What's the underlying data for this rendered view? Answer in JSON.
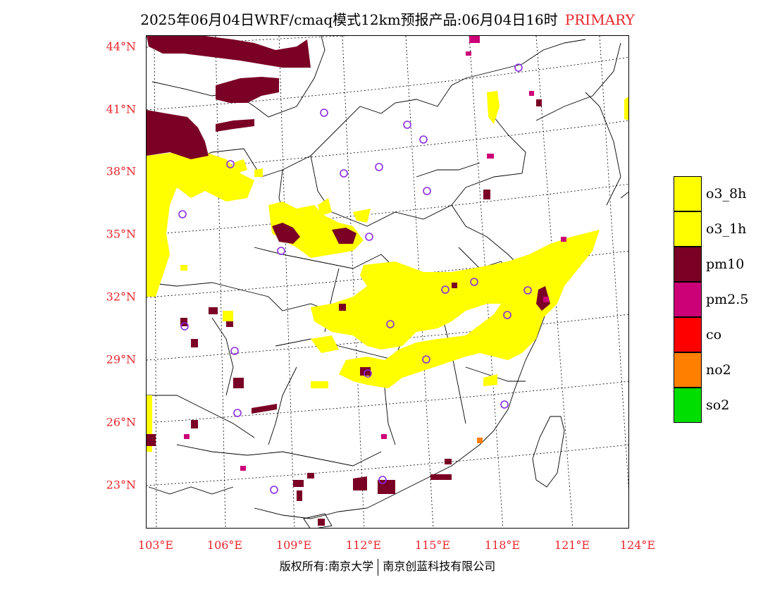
{
  "title": {
    "main": "2025年06月04日WRF/cmaq模式12km预报产品:06月04日16时",
    "tag": "PRIMARY"
  },
  "axes": {
    "lat_labels": [
      "44°N",
      "41°N",
      "38°N",
      "35°N",
      "32°N",
      "29°N",
      "26°N",
      "23°N"
    ],
    "lon_labels": [
      "103°E",
      "106°E",
      "109°E",
      "112°E",
      "115°E",
      "118°E",
      "121°E",
      "124°E"
    ]
  },
  "legend": [
    {
      "label": "o3_8h",
      "color": "#ffff00"
    },
    {
      "label": "o3_1h",
      "color": "#ffff00"
    },
    {
      "label": "pm10",
      "color": "#7a0025"
    },
    {
      "label": "pm2.5",
      "color": "#cc0077"
    },
    {
      "label": "co",
      "color": "#ff0000"
    },
    {
      "label": "no2",
      "color": "#ff7f00"
    },
    {
      "label": "so2",
      "color": "#00dd00"
    }
  ],
  "footer": {
    "left": "版权所有:南京大学",
    "right": "南京创蓝科技有限公司"
  },
  "colors": {
    "label_red": "#e8262b",
    "station_circle": "#8a2be2"
  }
}
